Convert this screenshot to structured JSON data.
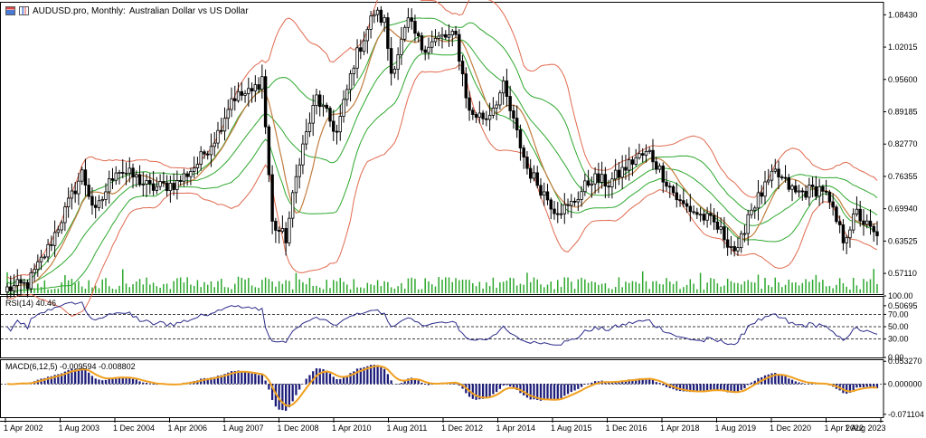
{
  "title": {
    "symbol": "AUDUSD.pro, Monthly:",
    "description": "Australian Dollar vs US Dollar"
  },
  "icons": [
    "chart-window-icon",
    "bar-chart-icon"
  ],
  "colors": {
    "bull_candle": "#ffffff",
    "bear_candle": "#000000",
    "candle_outline": "#000000",
    "volume": "#2ea82e",
    "bollinger_outer": "#e06a4f",
    "bollinger_inner": "#2ea82e",
    "moving_average": "#c27d3e",
    "rsi_line": "#2b2b8a",
    "macd_histogram": "#1c1c7a",
    "macd_signal": "#f0a020",
    "grid": "#000000"
  },
  "chart_data": [
    {
      "type": "candlestick",
      "panel": "price",
      "ylim": [
        0.53,
        1.11
      ],
      "y_ticks": [
        "1.08430",
        "1.02015",
        "0.95600",
        "0.89185",
        "0.82770",
        "0.76355",
        "0.69940",
        "0.63525",
        "0.57110",
        "0.50695"
      ],
      "x_ticks": [
        "1 Apr 2002",
        "1 Aug 2003",
        "1 Dec 2004",
        "1 Apr 2006",
        "1 Aug 2007",
        "1 Dec 2008",
        "1 Apr 2010",
        "1 Aug 2011",
        "1 Dec 2012",
        "1 Apr 2014",
        "1 Aug 2015",
        "1 Dec 2016",
        "1 Apr 2018",
        "1 Aug 2019",
        "1 Dec 2020",
        "1 Apr 2022",
        "1 Aug 2023"
      ],
      "start": "2002-04",
      "months": 257,
      "close_anchors": [
        [
          "2002-04",
          0.54
        ],
        [
          "2002-10",
          0.55
        ],
        [
          "2003-04",
          0.62
        ],
        [
          "2003-10",
          0.71
        ],
        [
          "2004-02",
          0.77
        ],
        [
          "2004-06",
          0.69
        ],
        [
          "2004-12",
          0.78
        ],
        [
          "2005-06",
          0.76
        ],
        [
          "2005-10",
          0.74
        ],
        [
          "2006-06",
          0.75
        ],
        [
          "2006-12",
          0.79
        ],
        [
          "2007-06",
          0.85
        ],
        [
          "2007-10",
          0.92
        ],
        [
          "2008-04",
          0.93
        ],
        [
          "2008-07",
          0.96
        ],
        [
          "2008-10",
          0.67
        ],
        [
          "2009-02",
          0.64
        ],
        [
          "2009-06",
          0.8
        ],
        [
          "2009-11",
          0.92
        ],
        [
          "2010-05",
          0.85
        ],
        [
          "2010-10",
          0.99
        ],
        [
          "2011-04",
          1.09
        ],
        [
          "2011-07",
          1.07
        ],
        [
          "2011-09",
          0.97
        ],
        [
          "2012-02",
          1.07
        ],
        [
          "2012-06",
          1.02
        ],
        [
          "2012-12",
          1.04
        ],
        [
          "2013-04",
          1.04
        ],
        [
          "2013-08",
          0.89
        ],
        [
          "2014-01",
          0.88
        ],
        [
          "2014-06",
          0.94
        ],
        [
          "2014-09",
          0.87
        ],
        [
          "2015-01",
          0.78
        ],
        [
          "2015-09",
          0.7
        ],
        [
          "2016-01",
          0.7
        ],
        [
          "2016-08",
          0.76
        ],
        [
          "2017-01",
          0.75
        ],
        [
          "2017-09",
          0.8
        ],
        [
          "2018-01",
          0.81
        ],
        [
          "2018-10",
          0.71
        ],
        [
          "2019-08",
          0.67
        ],
        [
          "2020-03",
          0.61
        ],
        [
          "2020-06",
          0.69
        ],
        [
          "2021-02",
          0.77
        ],
        [
          "2021-08",
          0.73
        ],
        [
          "2022-04",
          0.74
        ],
        [
          "2022-10",
          0.64
        ],
        [
          "2023-02",
          0.69
        ],
        [
          "2023-08",
          0.64
        ]
      ]
    },
    {
      "type": "line",
      "panel": "rsi",
      "label": "RSI(14) 40.46",
      "ylim": [
        0,
        100
      ],
      "y_ticks": [
        "100.00",
        "70.00",
        "50.00",
        "30.00",
        "0.00"
      ],
      "levels": [
        70,
        50,
        30
      ]
    },
    {
      "type": "bar",
      "panel": "macd",
      "label": "MACD(6,12,5) -0.009594 -0.008802",
      "ylim": [
        -0.078,
        0.058
      ],
      "y_ticks": [
        "0.053270",
        "0.000000",
        "-0.071104"
      ]
    }
  ]
}
